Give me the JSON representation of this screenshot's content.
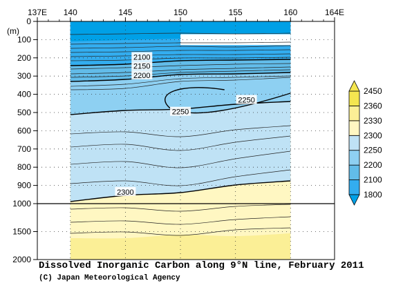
{
  "chart_data": {
    "type": "heatmap",
    "title": "Dissolved Inorganic Carbon along 9°N line, February 2011",
    "credit": "(C) Japan Meteorological Agency",
    "xlabel": "",
    "ylabel": "(m)",
    "x_ticks": [
      {
        "value": 137,
        "label": "137E"
      },
      {
        "value": 140,
        "label": "140"
      },
      {
        "value": 145,
        "label": "145"
      },
      {
        "value": 150,
        "label": "150"
      },
      {
        "value": 155,
        "label": "155"
      },
      {
        "value": 160,
        "label": "160"
      },
      {
        "value": 164,
        "label": "164E"
      }
    ],
    "xlim": [
      137,
      164
    ],
    "y_ticks_upper": [
      0,
      100,
      200,
      300,
      400,
      500,
      600,
      700,
      800,
      900,
      1000
    ],
    "y_ticks_lower": [
      1500,
      2000
    ],
    "ylim": [
      0,
      2000
    ],
    "y_axis_break_depth": 1000,
    "section_longitudes": [
      140,
      160
    ],
    "colorbar": {
      "levels": [
        1800,
        2100,
        2200,
        2250,
        2300,
        2330,
        2360,
        2450
      ],
      "colors": [
        "#00a0e6",
        "#33adef",
        "#62bce9",
        "#8ed0f2",
        "#bfe2f5",
        "#fff7c2",
        "#fbef96",
        "#f4e650"
      ]
    },
    "contour_labels": [
      {
        "value": "2100",
        "lon": 146.5,
        "depth": 195
      },
      {
        "value": "2150",
        "lon": 146.5,
        "depth": 245
      },
      {
        "value": "2200",
        "lon": 146.5,
        "depth": 295
      },
      {
        "value": "2250",
        "lon": 150.0,
        "depth": 495
      },
      {
        "value": "2250",
        "lon": 156.0,
        "depth": 430
      },
      {
        "value": "2300",
        "lon": 145.0,
        "depth": 935
      }
    ]
  }
}
